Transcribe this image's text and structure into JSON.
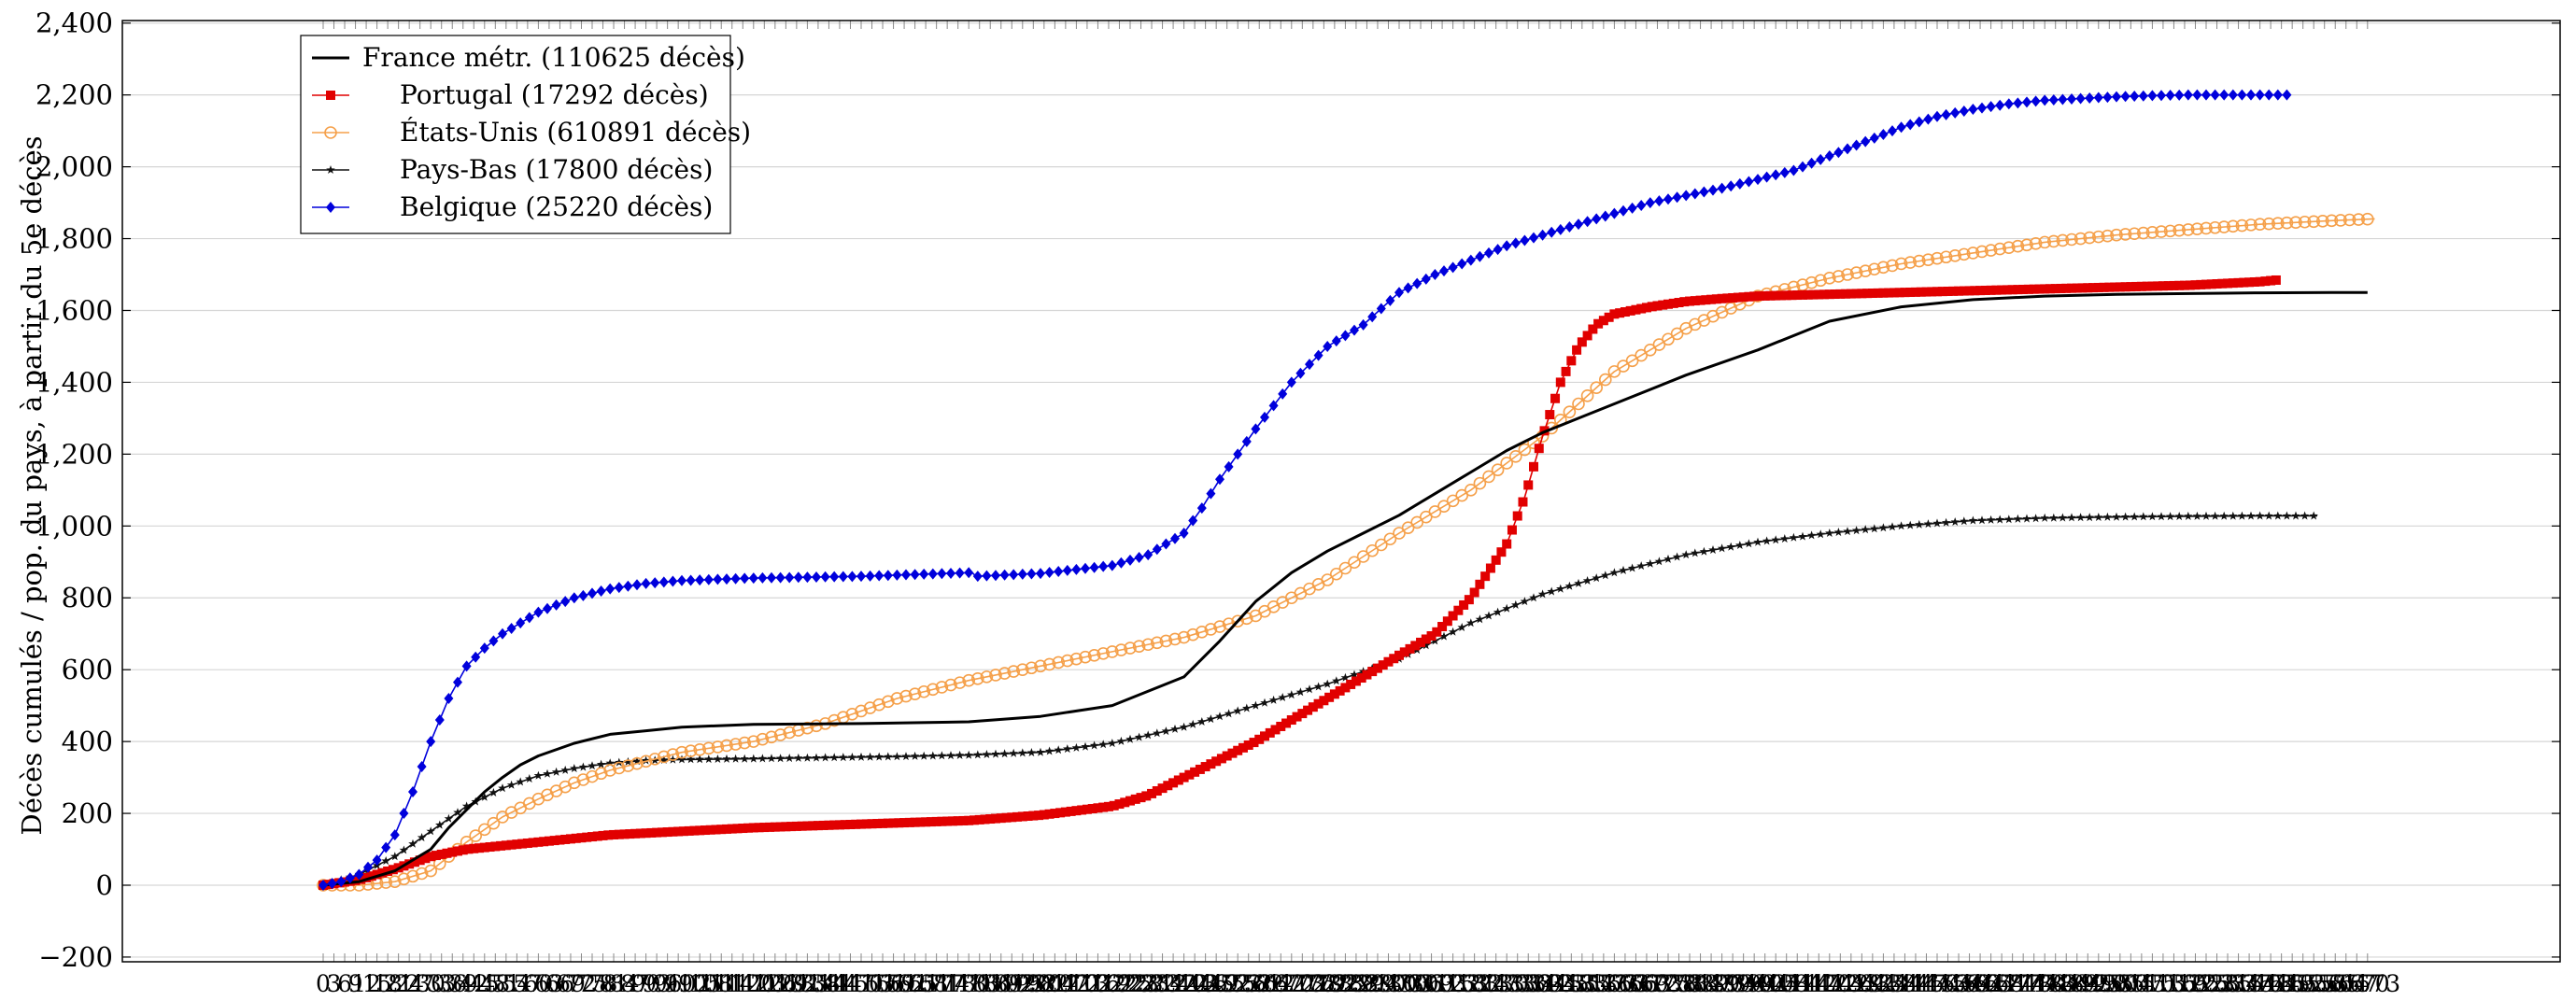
{
  "chart_data": {
    "type": "line",
    "title": "",
    "xlabel": "",
    "ylabel": "Décès cumulés / pop. du pays, à partir du 5e décès",
    "ylim": [
      -200,
      2400
    ],
    "xlim": [
      -70,
      640
    ],
    "yticks": [
      -200,
      0,
      200,
      400,
      600,
      800,
      1000,
      1200,
      1400,
      1600,
      1800,
      2000,
      2200,
      2400
    ],
    "ytick_labels": [
      "−200",
      "0",
      "200",
      "400",
      "600",
      "800",
      "1,000",
      "1,200",
      "1,400",
      "1,600",
      "1,800",
      "2,000",
      "2,200",
      "2,400"
    ],
    "xtick_step": 3,
    "xtick_max": 570,
    "xtick_label_last": "573",
    "grid": {
      "horizontal": true,
      "vertical": false
    },
    "legend_position": "top-left",
    "series": [
      {
        "name": "France métr. (110625 décès)",
        "color": "#000000",
        "marker": "none",
        "x": [
          0,
          10,
          20,
          30,
          35,
          40,
          45,
          50,
          55,
          60,
          70,
          80,
          90,
          100,
          120,
          150,
          180,
          200,
          220,
          240,
          250,
          260,
          270,
          280,
          290,
          300,
          310,
          320,
          330,
          340,
          350,
          360,
          380,
          400,
          420,
          440,
          460,
          480,
          500,
          520,
          530,
          540,
          560,
          570
        ],
        "y": [
          0,
          10,
          40,
          100,
          160,
          210,
          260,
          300,
          335,
          360,
          395,
          420,
          430,
          440,
          448,
          450,
          455,
          470,
          500,
          580,
          680,
          790,
          870,
          930,
          980,
          1030,
          1090,
          1150,
          1210,
          1260,
          1300,
          1340,
          1420,
          1490,
          1570,
          1610,
          1630,
          1640,
          1645,
          1647,
          1648,
          1649,
          1650,
          1650
        ]
      },
      {
        "name": "Portugal (17292 décès)",
        "color": "#e10000",
        "marker": "square",
        "x": [
          0,
          10,
          20,
          30,
          40,
          60,
          80,
          100,
          120,
          150,
          180,
          200,
          220,
          230,
          240,
          260,
          280,
          300,
          310,
          320,
          330,
          335,
          340,
          345,
          350,
          355,
          360,
          370,
          380,
          390,
          400,
          420,
          440,
          460,
          480,
          500,
          520,
          540,
          545
        ],
        "y": [
          0,
          15,
          45,
          80,
          100,
          120,
          140,
          150,
          160,
          170,
          180,
          195,
          220,
          250,
          300,
          400,
          520,
          640,
          700,
          800,
          950,
          1080,
          1250,
          1400,
          1500,
          1560,
          1590,
          1610,
          1625,
          1633,
          1640,
          1645,
          1650,
          1655,
          1660,
          1665,
          1670,
          1680,
          1685
        ]
      },
      {
        "name": "États-Unis (610891 décès)",
        "color": "#f5a04a",
        "marker": "circle",
        "x": [
          0,
          10,
          20,
          30,
          40,
          50,
          60,
          70,
          80,
          90,
          100,
          120,
          140,
          160,
          180,
          200,
          220,
          240,
          260,
          280,
          300,
          320,
          340,
          360,
          380,
          400,
          420,
          440,
          460,
          480,
          500,
          520,
          540,
          560,
          572
        ],
        "y": [
          0,
          0,
          10,
          40,
          120,
          190,
          240,
          285,
          320,
          345,
          370,
          400,
          450,
          520,
          570,
          610,
          650,
          690,
          750,
          850,
          980,
          1100,
          1250,
          1430,
          1550,
          1640,
          1690,
          1730,
          1760,
          1790,
          1810,
          1825,
          1840,
          1850,
          1855
        ]
      },
      {
        "name": "Pays-Bas (17800 décès)",
        "color": "#111111",
        "marker": "star",
        "x": [
          0,
          10,
          20,
          30,
          40,
          50,
          60,
          70,
          80,
          90,
          100,
          120,
          140,
          160,
          180,
          200,
          220,
          240,
          260,
          280,
          300,
          320,
          340,
          360,
          380,
          400,
          420,
          440,
          460,
          480,
          500,
          520,
          540,
          556
        ],
        "y": [
          0,
          30,
          80,
          150,
          220,
          270,
          305,
          325,
          340,
          347,
          350,
          352,
          355,
          358,
          362,
          370,
          395,
          440,
          500,
          560,
          630,
          730,
          810,
          870,
          920,
          955,
          980,
          1000,
          1015,
          1022,
          1025,
          1027,
          1028,
          1028
        ]
      },
      {
        "name": "Belgique (25220 décès)",
        "color": "#0000dc",
        "marker": "diamond",
        "x": [
          0,
          5,
          10,
          15,
          20,
          25,
          30,
          35,
          40,
          45,
          50,
          55,
          60,
          70,
          80,
          90,
          100,
          120,
          150,
          180,
          181,
          182,
          200,
          220,
          230,
          240,
          245,
          250,
          260,
          270,
          280,
          290,
          300,
          310,
          320,
          330,
          340,
          350,
          360,
          370,
          380,
          390,
          400,
          410,
          420,
          430,
          440,
          450,
          460,
          470,
          480,
          490,
          500,
          510,
          520,
          530,
          548
        ],
        "y": [
          0,
          10,
          30,
          70,
          140,
          260,
          400,
          520,
          610,
          660,
          700,
          730,
          760,
          800,
          825,
          840,
          848,
          855,
          860,
          870,
          870,
          860,
          868,
          890,
          920,
          980,
          1050,
          1130,
          1270,
          1400,
          1500,
          1560,
          1650,
          1700,
          1740,
          1780,
          1810,
          1840,
          1870,
          1900,
          1920,
          1940,
          1965,
          1990,
          2030,
          2070,
          2110,
          2140,
          2160,
          2175,
          2185,
          2190,
          2195,
          2198,
          2200,
          2200,
          2200
        ]
      }
    ]
  }
}
